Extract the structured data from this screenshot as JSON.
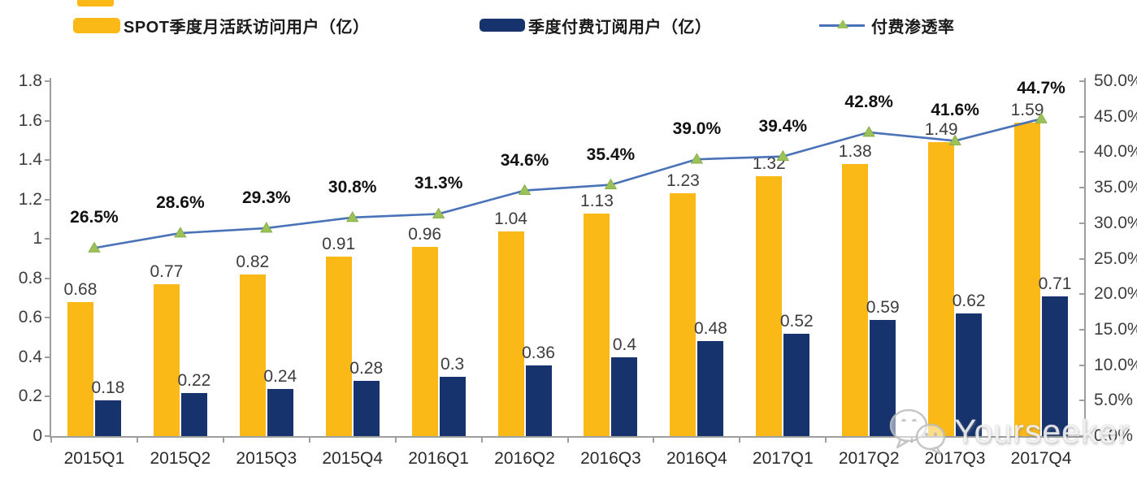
{
  "legend": [
    {
      "label": "SPOT季度月活跃访问用户（亿）",
      "color": "#FBB917",
      "type": "bar"
    },
    {
      "label": "季度付费订阅用户（亿）",
      "color": "#16336E",
      "type": "bar"
    },
    {
      "label": "付费渗透率",
      "color": "#4A72B8",
      "marker_color": "#9CC158",
      "type": "line"
    }
  ],
  "chart_data": {
    "type": "bar",
    "subtype": "grouped-bars-with-line",
    "categories": [
      "2015Q1",
      "2015Q2",
      "2015Q3",
      "2015Q4",
      "2016Q1",
      "2016Q2",
      "2016Q3",
      "2016Q4",
      "2017Q1",
      "2017Q2",
      "2017Q3",
      "2017Q4"
    ],
    "series": [
      {
        "name": "SPOT季度月活跃访问用户（亿）",
        "type": "bar",
        "axis": "left",
        "color": "#FBB917",
        "values": [
          0.68,
          0.77,
          0.82,
          0.91,
          0.96,
          1.04,
          1.13,
          1.23,
          1.32,
          1.38,
          1.49,
          1.59
        ],
        "labels": [
          "0.68",
          "0.77",
          "0.82",
          "0.91",
          "0.96",
          "1.04",
          "1.13",
          "1.23",
          "1.32",
          "1.38",
          "1.49",
          "1.59"
        ]
      },
      {
        "name": "季度付费订阅用户（亿）",
        "type": "bar",
        "axis": "left",
        "color": "#16336E",
        "values": [
          0.18,
          0.22,
          0.24,
          0.28,
          0.3,
          0.36,
          0.4,
          0.48,
          0.52,
          0.59,
          0.62,
          0.71
        ],
        "labels": [
          "0.18",
          "0.22",
          "0.24",
          "0.28",
          "0.3",
          "0.36",
          "0.4",
          "0.48",
          "0.52",
          "0.59",
          "0.62",
          "0.71"
        ]
      },
      {
        "name": "付费渗透率",
        "type": "line",
        "axis": "right",
        "color": "#4A72B8",
        "marker": "triangle",
        "marker_color": "#9CC158",
        "values": [
          26.5,
          28.6,
          29.3,
          30.8,
          31.3,
          34.6,
          35.4,
          39.0,
          39.4,
          42.8,
          41.6,
          44.7
        ],
        "labels": [
          "26.5%",
          "28.6%",
          "29.3%",
          "30.8%",
          "31.3%",
          "34.6%",
          "35.4%",
          "39.0%",
          "39.4%",
          "42.8%",
          "41.6%",
          "44.7%"
        ]
      }
    ],
    "left_axis": {
      "min": 0,
      "max": 1.8,
      "step": 0.2,
      "ticks": [
        "0",
        "0.2",
        "0.4",
        "0.6",
        "0.8",
        "1",
        "1.2",
        "1.4",
        "1.6",
        "1.8"
      ]
    },
    "right_axis": {
      "min": 0,
      "max": 50,
      "step": 5,
      "ticks": [
        "0.0%",
        "5.0%",
        "10.0%",
        "15.0%",
        "20.0%",
        "25.0%",
        "30.0%",
        "35.0%",
        "40.0%",
        "45.0%",
        "50.0%"
      ]
    },
    "grid": false,
    "legend_position": "top"
  },
  "watermark": {
    "text": "Yourseeker",
    "icon": "wechat-icon"
  }
}
